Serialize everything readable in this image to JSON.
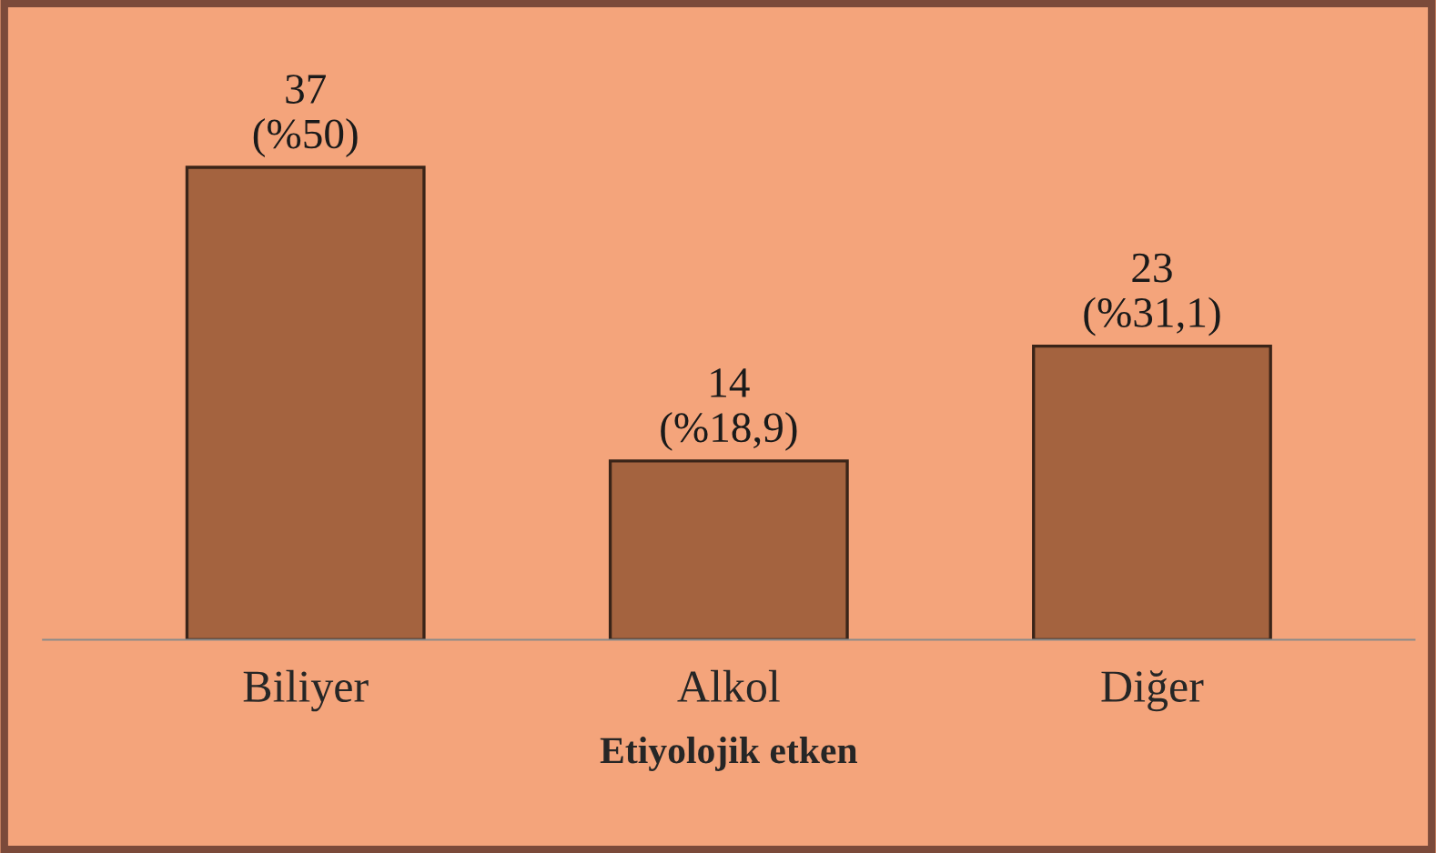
{
  "chart_data": {
    "type": "bar",
    "xlabel": "Etiyolojik etken",
    "categories": [
      "Biliyer",
      "Alkol",
      "Diğer"
    ],
    "values": [
      37,
      14,
      23
    ],
    "value_labels": [
      "37\n(%50)",
      "14\n(%18,9)",
      "23\n(%31,1)"
    ],
    "color": "#a4633f",
    "grid": false,
    "legend": false
  }
}
